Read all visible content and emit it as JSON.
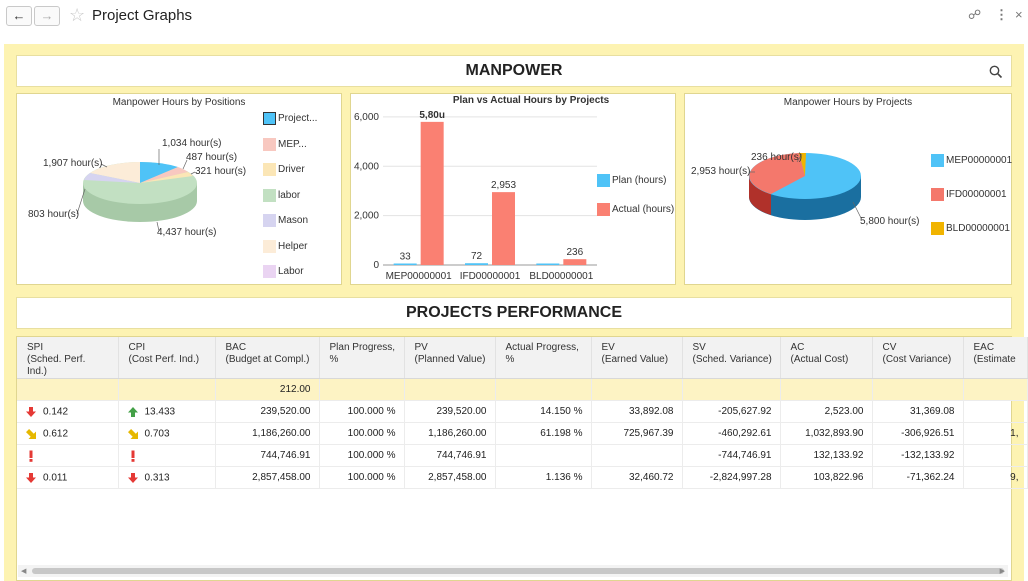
{
  "header": {
    "title": "Project Graphs"
  },
  "sections": {
    "manpower": "MANPOWER",
    "performance": "PROJECTS PERFORMANCE"
  },
  "pie1": {
    "title": "Manpower Hours by Positions",
    "legend": [
      {
        "label": "Project...",
        "color": "#4fc3f7"
      },
      {
        "label": "MEP...",
        "color": "#f8c8c0"
      },
      {
        "label": "Driver",
        "color": "#fbe6b6"
      },
      {
        "label": "labor",
        "color": "#c2e0c2"
      },
      {
        "label": "Mason",
        "color": "#d6d4f0"
      },
      {
        "label": "Helper",
        "color": "#fcecd8"
      },
      {
        "label": "Labor",
        "color": "#ead4f2"
      }
    ],
    "labels": [
      "1,034 hour(s)",
      "487 hour(s)",
      "321 hour(s)",
      "1,907 hour(s)",
      "803 hour(s)",
      "4,437 hour(s)"
    ]
  },
  "bar": {
    "title": "Plan vs Actual Hours by Projects",
    "yticks": [
      "6,000",
      "4,000",
      "2,000",
      "0"
    ],
    "legend": [
      {
        "label": "Plan (hours)",
        "color": "#4fc3f7"
      },
      {
        "label": "Actual (hours)",
        "color": "#fa8072"
      }
    ],
    "value_labels": [
      "33",
      "5,80u",
      "72",
      "2,953",
      "",
      "236"
    ]
  },
  "pie2": {
    "title": "Manpower Hours by Projects",
    "legend": [
      {
        "label": "MEP00000001",
        "color": "#4fc3f7"
      },
      {
        "label": "IFD00000001",
        "color": "#f4786c"
      },
      {
        "label": "BLD00000001",
        "color": "#f1b400"
      }
    ],
    "labels": [
      "236 hour(s)",
      "2,953 hour(s)",
      "5,800 hour(s)"
    ]
  },
  "chart_data": [
    {
      "type": "pie",
      "title": "Manpower Hours by Positions",
      "categories": [
        "Project...",
        "MEP...",
        "Driver",
        "labor",
        "Mason",
        "Helper",
        "Labor"
      ],
      "values": [
        1034,
        487,
        321,
        4437,
        803,
        1907,
        null
      ]
    },
    {
      "type": "bar",
      "title": "Plan vs Actual Hours by Projects",
      "categories": [
        "MEP00000001",
        "IFD00000001",
        "BLD00000001"
      ],
      "series": [
        {
          "name": "Plan (hours)",
          "values": [
            33,
            72,
            0
          ]
        },
        {
          "name": "Actual (hours)",
          "values": [
            5800,
            2953,
            236
          ]
        }
      ],
      "ylim": [
        0,
        6200
      ]
    },
    {
      "type": "pie",
      "title": "Manpower Hours by Projects",
      "categories": [
        "MEP00000001",
        "IFD00000001",
        "BLD00000001"
      ],
      "values": [
        5800,
        2953,
        236
      ]
    }
  ],
  "table": {
    "columns": [
      {
        "line1": "SPI",
        "line2": "(Sched. Perf.",
        "line3": "Ind.)"
      },
      {
        "line1": "CPI",
        "line2": "(Cost Perf. Ind.)",
        "line3": ""
      },
      {
        "line1": "BAC",
        "line2": "(Budget at Compl.)",
        "line3": ""
      },
      {
        "line1": "Plan Progress,",
        "line2": "%",
        "line3": ""
      },
      {
        "line1": "PV",
        "line2": "(Planned Value)",
        "line3": ""
      },
      {
        "line1": "Actual Progress,",
        "line2": "%",
        "line3": ""
      },
      {
        "line1": "EV",
        "line2": "(Earned Value)",
        "line3": ""
      },
      {
        "line1": "SV",
        "line2": "(Sched. Variance)",
        "line3": ""
      },
      {
        "line1": "AC",
        "line2": "(Actual Cost)",
        "line3": ""
      },
      {
        "line1": "CV",
        "line2": "(Cost Variance)",
        "line3": ""
      },
      {
        "line1": "EAC",
        "line2": "(Estimate",
        "line3": ""
      }
    ],
    "summary": {
      "bac": "212.00"
    },
    "rows": [
      {
        "spi_icon": "down-red",
        "spi": "0.142",
        "cpi_icon": "up-green",
        "cpi": "13.433",
        "bac": "239,520.00",
        "plan": "100.000 %",
        "pv": "239,520.00",
        "actual": "14.150 %",
        "ev": "33,892.08",
        "sv": "-205,627.92",
        "ac": "2,523.00",
        "cv": "31,369.08",
        "eac": ""
      },
      {
        "spi_icon": "diag-yellow",
        "spi": "0.612",
        "cpi_icon": "diag-yellow",
        "cpi": "0.703",
        "bac": "1,186,260.00",
        "plan": "100.000 %",
        "pv": "1,186,260.00",
        "actual": "61.198 %",
        "ev": "725,967.39",
        "sv": "-460,292.61",
        "ac": "1,032,893.90",
        "cv": "-306,926.51",
        "eac": "1,"
      },
      {
        "spi_icon": "exclaim",
        "spi": "",
        "cpi_icon": "exclaim",
        "cpi": "",
        "bac": "744,746.91",
        "plan": "100.000 %",
        "pv": "744,746.91",
        "actual": "",
        "ev": "",
        "sv": "-744,746.91",
        "ac": "132,133.92",
        "cv": "-132,133.92",
        "eac": ""
      },
      {
        "spi_icon": "down-red",
        "spi": "0.011",
        "cpi_icon": "down-red",
        "cpi": "0.313",
        "bac": "2,857,458.00",
        "plan": "100.000 %",
        "pv": "2,857,458.00",
        "actual": "1.136 %",
        "ev": "32,460.72",
        "sv": "-2,824,997.28",
        "ac": "103,822.96",
        "cv": "-71,362.24",
        "eac": "9,"
      }
    ]
  }
}
